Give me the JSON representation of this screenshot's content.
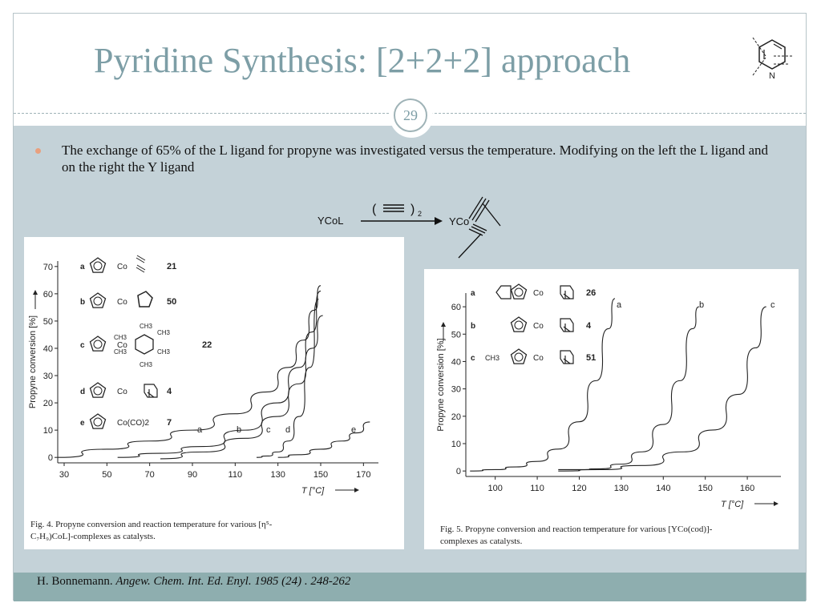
{
  "slide": {
    "title": "Pyridine Synthesis: [2+2+2] approach",
    "number": "29",
    "bullet": "The exchange of 65% of the L ligand for propyne was investigated versus the temperature. Modifying on the left the L ligand and on the right the Y ligand",
    "citation_author": "H. Bonnemann.",
    "citation_journal": "Angew. Chem. Int. Ed. Enyl.",
    "citation_rest": "1985 (24) . 248-262",
    "accent_color": "#7d9ea6",
    "body_color": "#c4d2d8",
    "footer_color": "#8eaeaf"
  },
  "scheme": {
    "reactant": "YCoL",
    "reagent_open": "(",
    "reagent_close": ")",
    "reagent_sub": "2",
    "product": "YCo"
  },
  "fig4": {
    "caption_line1": "Fig. 4. Propyne conversion and reaction temperature for various [η⁵-",
    "caption_line2": "C₇H₉)CoL]-complexes as catalysts.",
    "legend": [
      {
        "letter": "a",
        "metal": "Co",
        "number": "21"
      },
      {
        "letter": "b",
        "metal": "Co",
        "number": "50"
      },
      {
        "letter": "c",
        "metal": "Co",
        "number": "22",
        "substituent": "CH3"
      },
      {
        "letter": "d",
        "metal": "Co",
        "number": "4"
      },
      {
        "letter": "e",
        "metal": "Co(CO)2",
        "number": "7"
      }
    ]
  },
  "fig5": {
    "caption_line1": "Fig. 5. Propyne conversion and reaction temperature for various [YCo(cod)]-",
    "caption_line2": "complexes as catalysts.",
    "legend": [
      {
        "letter": "a",
        "metal": "Co",
        "number": "26"
      },
      {
        "letter": "b",
        "metal": "Co",
        "number": "4"
      },
      {
        "letter": "c",
        "metal": "Co",
        "number": "51",
        "substituent": "CH3"
      }
    ]
  },
  "chart_data": [
    {
      "type": "line",
      "title": "",
      "xlabel": "T [°C]",
      "ylabel": "Propyne conversion [%]",
      "xlim": [
        27,
        177
      ],
      "ylim": [
        -2,
        72
      ],
      "xticks": [
        30,
        50,
        70,
        90,
        110,
        130,
        150,
        170
      ],
      "yticks": [
        0,
        10,
        20,
        30,
        40,
        50,
        60,
        70
      ],
      "series": [
        {
          "name": "a",
          "x": [
            27,
            50,
            70,
            90,
            110,
            125,
            135,
            142,
            147,
            150
          ],
          "y": [
            0,
            3,
            6,
            10,
            16,
            24,
            33,
            43,
            54,
            63
          ]
        },
        {
          "name": "b",
          "x": [
            55,
            75,
            95,
            115,
            130,
            140,
            146,
            150
          ],
          "y": [
            0,
            1.5,
            4,
            10,
            20,
            33,
            46,
            61
          ]
        },
        {
          "name": "c",
          "x": [
            75,
            95,
            115,
            130,
            140,
            146,
            151
          ],
          "y": [
            -0.5,
            2,
            7,
            15,
            27,
            40,
            52
          ]
        },
        {
          "name": "d",
          "x": [
            120,
            125,
            130,
            135,
            140,
            145,
            149
          ],
          "y": [
            0,
            0.5,
            2,
            6,
            15,
            33,
            58
          ]
        },
        {
          "name": "e",
          "x": [
            130,
            140,
            150,
            160,
            167,
            173
          ],
          "y": [
            0,
            1,
            3,
            6,
            9,
            13
          ]
        }
      ]
    },
    {
      "type": "line",
      "title": "",
      "xlabel": "T [°C]",
      "ylabel": "Propyne conversion [%]",
      "xlim": [
        93,
        168
      ],
      "ylim": [
        -2,
        65
      ],
      "xticks": [
        100,
        110,
        120,
        130,
        140,
        150,
        160
      ],
      "yticks": [
        0,
        10,
        20,
        30,
        40,
        50,
        60
      ],
      "series": [
        {
          "name": "a",
          "x": [
            94,
            100,
            105,
            110,
            115,
            120,
            124,
            127,
            128.5
          ],
          "y": [
            0,
            0.5,
            1.5,
            3.5,
            8,
            18,
            33,
            52,
            63
          ]
        },
        {
          "name": "b",
          "x": [
            115,
            120,
            125,
            130,
            135,
            140,
            144,
            147,
            148.5
          ],
          "y": [
            0.5,
            0.5,
            0.8,
            2.5,
            7,
            17,
            33,
            52,
            60
          ]
        },
        {
          "name": "c",
          "x": [
            115,
            125,
            135,
            145,
            152,
            158,
            162,
            164.5
          ],
          "y": [
            0,
            0.5,
            2,
            7,
            15,
            28,
            45,
            60
          ]
        }
      ]
    }
  ]
}
